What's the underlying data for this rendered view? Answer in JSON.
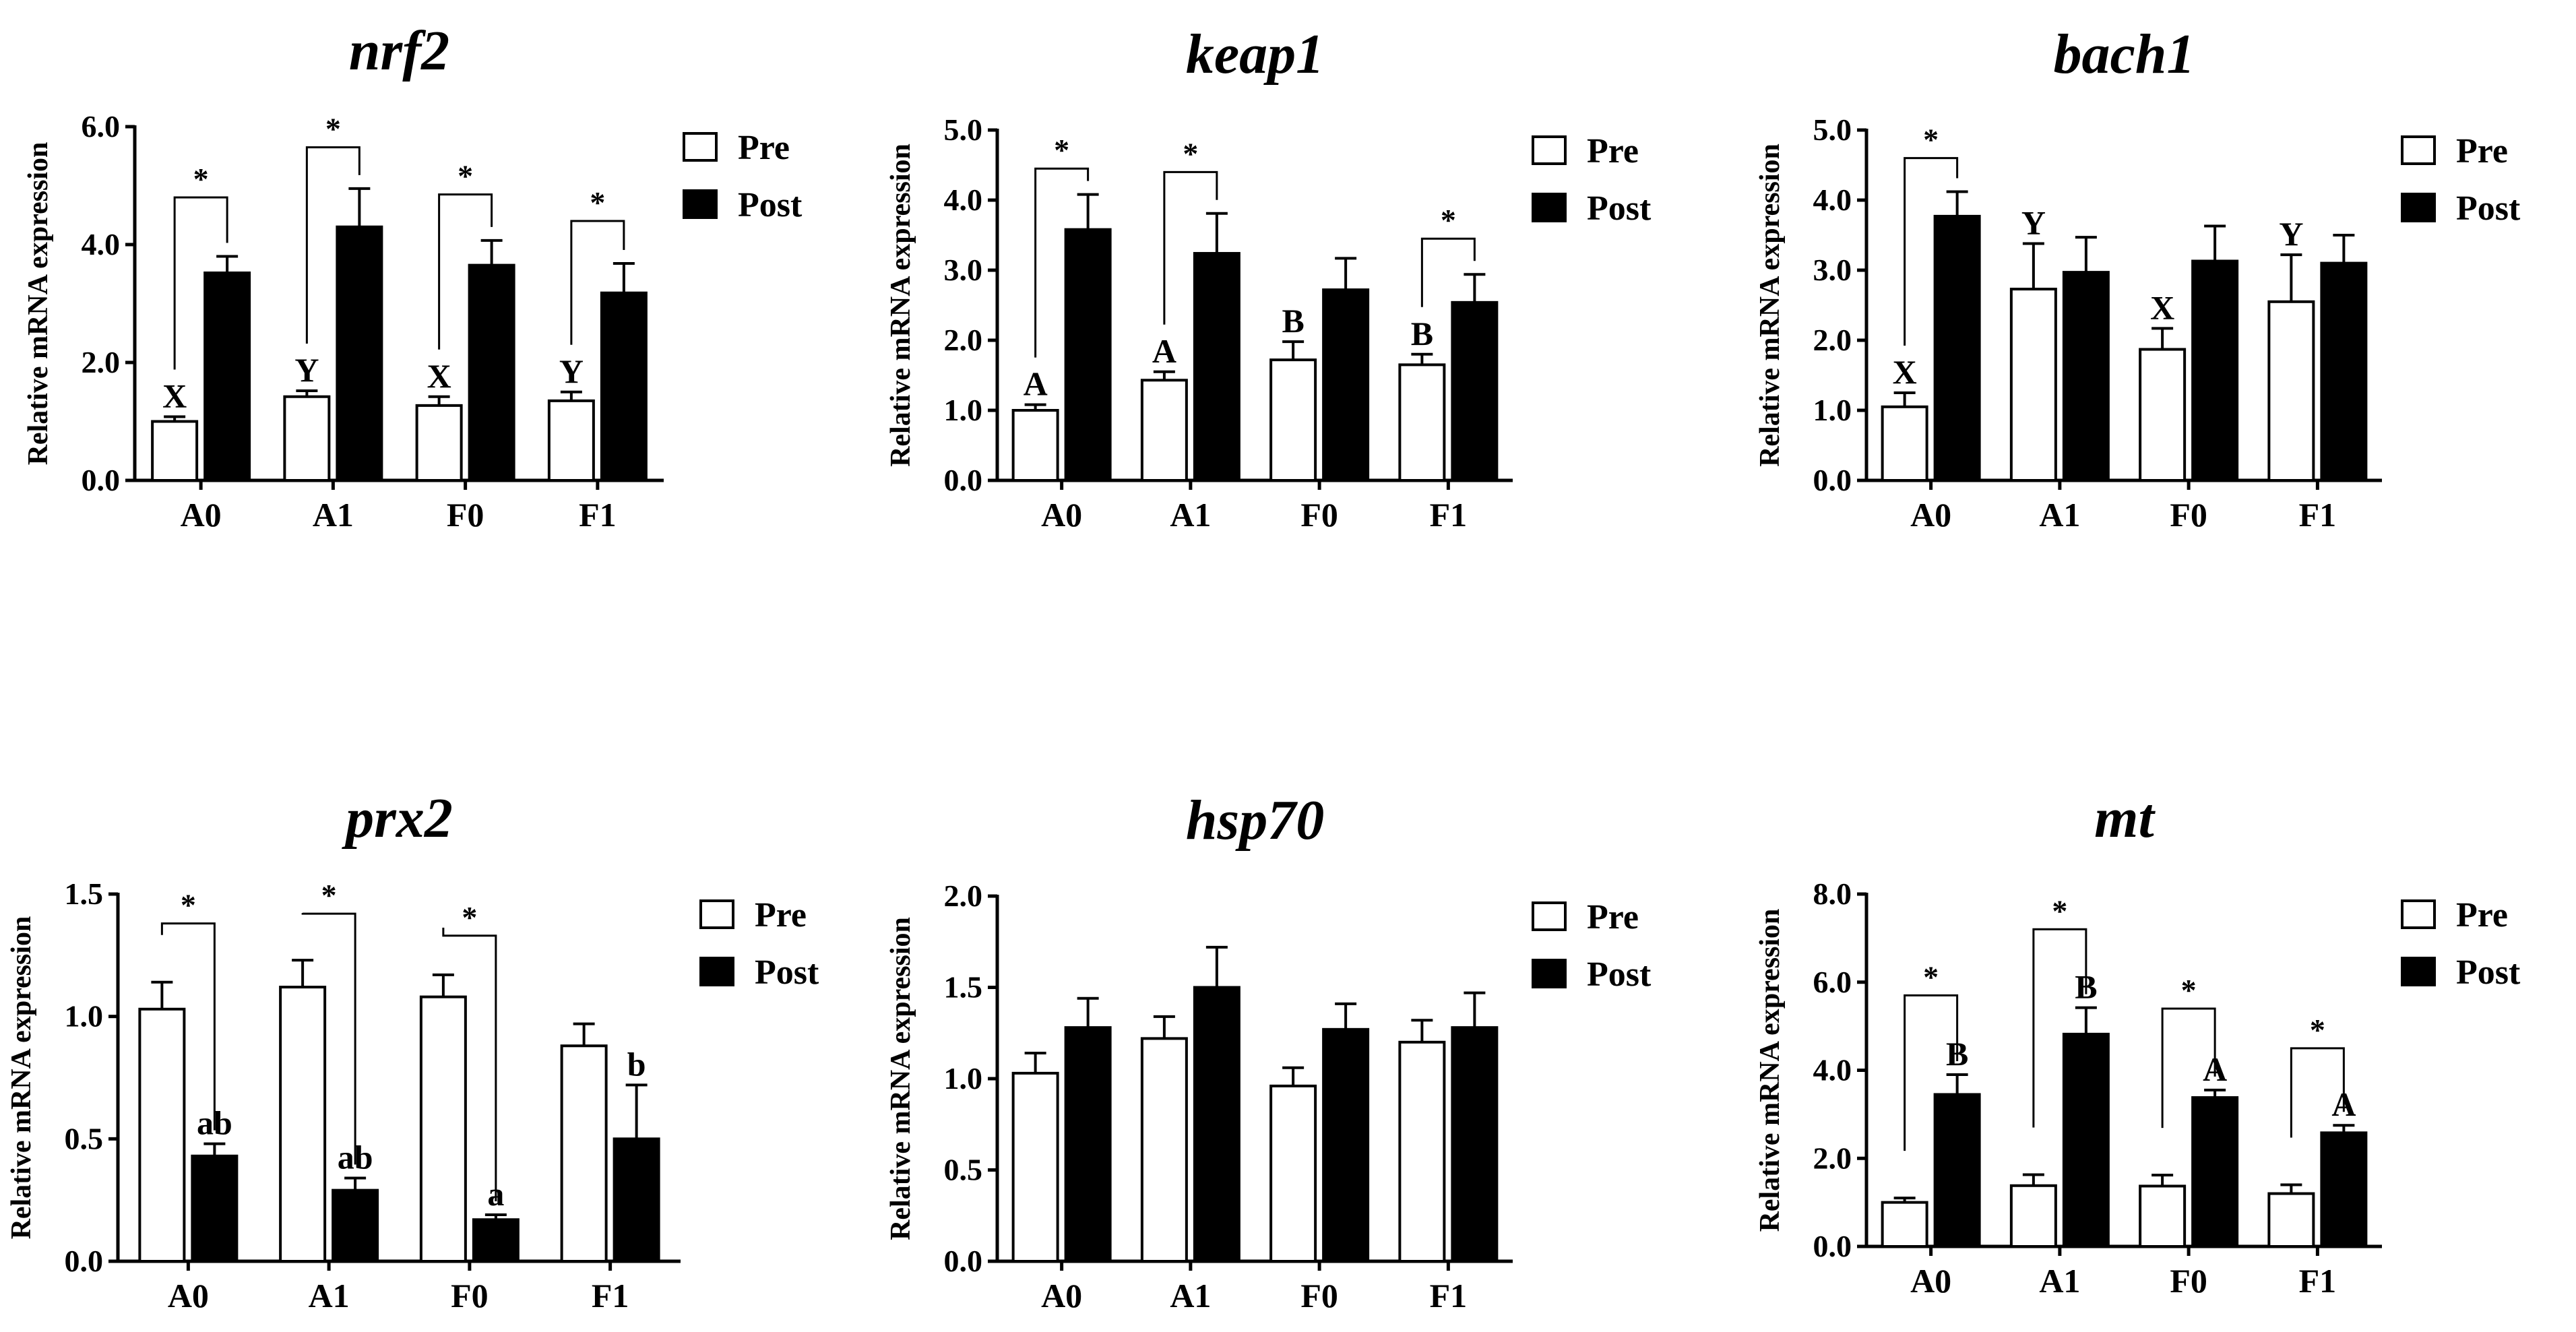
{
  "chart_data": [
    {
      "type": "bar",
      "title": "nrf2",
      "ylabel": "Relative mRNA expression",
      "xlabel": "",
      "ylim": [
        0,
        6
      ],
      "yticks": [
        "0.0",
        "2.0",
        "4.0",
        "6.0"
      ],
      "categories": [
        "A0",
        "A1",
        "F0",
        "F1"
      ],
      "legend": "top-right",
      "series": [
        {
          "name": "Pre",
          "color": "#ffffff",
          "values": [
            1.0,
            1.42,
            1.27,
            1.35
          ],
          "errors": [
            0.08,
            0.1,
            0.15,
            0.15
          ]
        },
        {
          "name": "Post",
          "color": "#000000",
          "values": [
            3.52,
            4.3,
            3.65,
            3.18
          ],
          "errors": [
            0.28,
            0.65,
            0.42,
            0.5
          ]
        }
      ],
      "letters": [
        {
          "cat": 0,
          "series": 0,
          "text": "X"
        },
        {
          "cat": 1,
          "series": 0,
          "text": "Y"
        },
        {
          "cat": 2,
          "series": 0,
          "text": "X"
        },
        {
          "cat": 3,
          "series": 0,
          "text": "Y"
        }
      ],
      "sig_brackets": [
        {
          "cat": 0,
          "level": 4.8,
          "text": "*"
        },
        {
          "cat": 1,
          "level": 5.65,
          "text": "*"
        },
        {
          "cat": 2,
          "level": 4.85,
          "text": "*"
        },
        {
          "cat": 3,
          "level": 4.4,
          "text": "*"
        }
      ]
    },
    {
      "type": "bar",
      "title": "keap1",
      "ylabel": "Relative mRNA expression",
      "xlabel": "",
      "ylim": [
        0,
        5
      ],
      "yticks": [
        "0.0",
        "1.0",
        "2.0",
        "3.0",
        "4.0",
        "5.0"
      ],
      "categories": [
        "A0",
        "A1",
        "F0",
        "F1"
      ],
      "legend": "top-right",
      "series": [
        {
          "name": "Pre",
          "color": "#ffffff",
          "values": [
            1.0,
            1.43,
            1.72,
            1.65
          ],
          "errors": [
            0.08,
            0.12,
            0.26,
            0.15
          ]
        },
        {
          "name": "Post",
          "color": "#000000",
          "values": [
            3.58,
            3.24,
            2.72,
            2.54
          ],
          "errors": [
            0.5,
            0.57,
            0.45,
            0.4
          ]
        }
      ],
      "letters": [
        {
          "cat": 0,
          "series": 0,
          "text": "A"
        },
        {
          "cat": 1,
          "series": 0,
          "text": "A"
        },
        {
          "cat": 2,
          "series": 0,
          "text": "B"
        },
        {
          "cat": 3,
          "series": 0,
          "text": "B"
        }
      ],
      "sig_brackets": [
        {
          "cat": 0,
          "level": 4.45,
          "text": "*"
        },
        {
          "cat": 1,
          "level": 4.4,
          "text": "*"
        },
        {
          "cat": 3,
          "level": 3.45,
          "text": "*"
        }
      ]
    },
    {
      "type": "bar",
      "title": "bach1",
      "ylabel": "Relative mRNA expression",
      "xlabel": "",
      "ylim": [
        0,
        5
      ],
      "yticks": [
        "0.0",
        "1.0",
        "2.0",
        "3.0",
        "4.0",
        "5.0"
      ],
      "categories": [
        "A0",
        "A1",
        "F0",
        "F1"
      ],
      "legend": "top-right",
      "series": [
        {
          "name": "Pre",
          "color": "#ffffff",
          "values": [
            1.05,
            2.73,
            1.87,
            2.55
          ],
          "errors": [
            0.2,
            0.65,
            0.3,
            0.67
          ]
        },
        {
          "name": "Post",
          "color": "#000000",
          "values": [
            3.77,
            2.97,
            3.13,
            3.1
          ],
          "errors": [
            0.35,
            0.5,
            0.5,
            0.4
          ]
        }
      ],
      "letters": [
        {
          "cat": 0,
          "series": 0,
          "text": "X"
        },
        {
          "cat": 1,
          "series": 0,
          "text": "Y"
        },
        {
          "cat": 2,
          "series": 0,
          "text": "X"
        },
        {
          "cat": 3,
          "series": 0,
          "text": "Y"
        }
      ],
      "sig_brackets": [
        {
          "cat": 0,
          "level": 4.6,
          "text": "*"
        }
      ]
    },
    {
      "type": "bar",
      "title": "prx2",
      "ylabel": "Relative mRNA expression",
      "xlabel": "",
      "ylim": [
        0,
        1.5
      ],
      "yticks": [
        "0.0",
        "0.5",
        "1.0",
        "1.5"
      ],
      "categories": [
        "A0",
        "A1",
        "F0",
        "F1"
      ],
      "legend": "top-right",
      "series": [
        {
          "name": "Pre",
          "color": "#ffffff",
          "values": [
            1.03,
            1.12,
            1.08,
            0.88
          ],
          "errors": [
            0.11,
            0.11,
            0.09,
            0.09
          ]
        },
        {
          "name": "Post",
          "color": "#000000",
          "values": [
            0.43,
            0.29,
            0.17,
            0.5
          ],
          "errors": [
            0.05,
            0.05,
            0.02,
            0.22
          ]
        }
      ],
      "letters": [
        {
          "cat": 0,
          "series": 1,
          "text": "ab"
        },
        {
          "cat": 1,
          "series": 1,
          "text": "ab"
        },
        {
          "cat": 2,
          "series": 1,
          "text": "a"
        },
        {
          "cat": 3,
          "series": 1,
          "text": "b"
        }
      ],
      "sig_brackets": [
        {
          "cat": 0,
          "level": 1.38,
          "text": "*"
        },
        {
          "cat": 1,
          "level": 1.42,
          "text": "*"
        },
        {
          "cat": 2,
          "level": 1.33,
          "text": "*"
        }
      ]
    },
    {
      "type": "bar",
      "title": "hsp70",
      "ylabel": "Relative mRNA expression",
      "xlabel": "",
      "ylim": [
        0,
        2
      ],
      "yticks": [
        "0.0",
        "0.5",
        "1.0",
        "1.5",
        "2.0"
      ],
      "categories": [
        "A0",
        "A1",
        "F0",
        "F1"
      ],
      "legend": "top-right",
      "series": [
        {
          "name": "Pre",
          "color": "#ffffff",
          "values": [
            1.03,
            1.22,
            0.96,
            1.2
          ],
          "errors": [
            0.11,
            0.12,
            0.1,
            0.12
          ]
        },
        {
          "name": "Post",
          "color": "#000000",
          "values": [
            1.28,
            1.5,
            1.27,
            1.28
          ],
          "errors": [
            0.16,
            0.22,
            0.14,
            0.19
          ]
        }
      ],
      "letters": [],
      "sig_brackets": []
    },
    {
      "type": "bar",
      "title": "mt",
      "ylabel": "Relative mRNA expression",
      "xlabel": "",
      "ylim": [
        0,
        8
      ],
      "yticks": [
        "0.0",
        "2.0",
        "4.0",
        "6.0",
        "8.0"
      ],
      "categories": [
        "A0",
        "A1",
        "F0",
        "F1"
      ],
      "legend": "top-right",
      "series": [
        {
          "name": "Pre",
          "color": "#ffffff",
          "values": [
            1.0,
            1.38,
            1.37,
            1.2
          ],
          "errors": [
            0.1,
            0.25,
            0.25,
            0.2
          ]
        },
        {
          "name": "Post",
          "color": "#000000",
          "values": [
            3.45,
            4.82,
            3.38,
            2.58
          ],
          "errors": [
            0.45,
            0.6,
            0.17,
            0.17
          ]
        }
      ],
      "letters": [
        {
          "cat": 0,
          "series": 1,
          "text": "B"
        },
        {
          "cat": 1,
          "series": 1,
          "text": "B"
        },
        {
          "cat": 2,
          "series": 1,
          "text": "A"
        },
        {
          "cat": 3,
          "series": 1,
          "text": "A"
        }
      ],
      "sig_brackets": [
        {
          "cat": 0,
          "level": 5.7,
          "text": "*"
        },
        {
          "cat": 1,
          "level": 7.2,
          "text": "*"
        },
        {
          "cat": 2,
          "level": 5.4,
          "text": "*"
        },
        {
          "cat": 3,
          "level": 4.5,
          "text": "*"
        }
      ]
    }
  ]
}
